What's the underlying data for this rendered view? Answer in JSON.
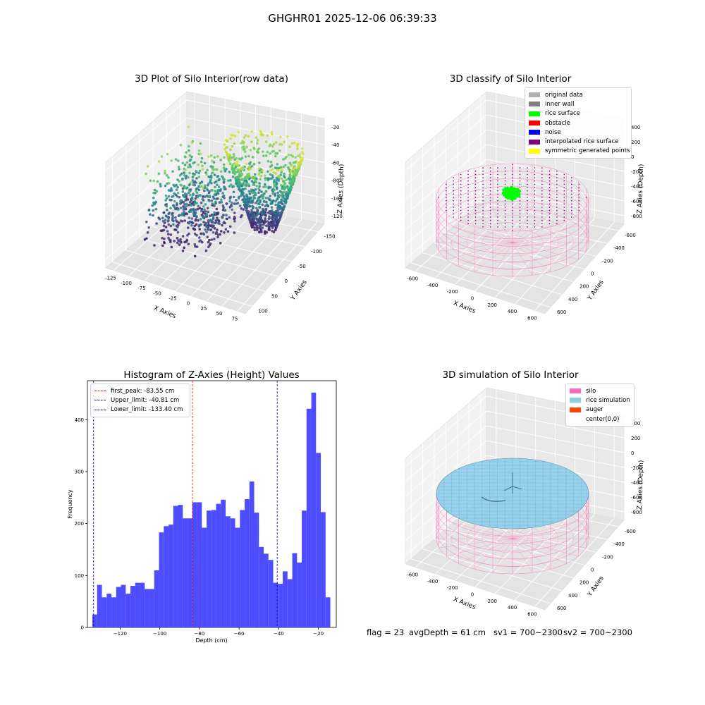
{
  "suptitle": "GHGHR01 2025-12-06 06:39:33",
  "chart_data": [
    {
      "type": "scatter",
      "subtype": "3d",
      "title": "3D Plot of Silo Interior(row data)",
      "xlabel": "X Axies",
      "ylabel": "Y Axies",
      "zlabel": "Z Axies (Depth)",
      "x_ticks": [
        "-125",
        "-100",
        "-75",
        "-50",
        "-25",
        "0",
        "25",
        "50",
        "75"
      ],
      "y_ticks": [
        "100",
        "50",
        "0",
        "-50",
        "-100",
        "-150"
      ],
      "z_ticks": [
        "-20",
        "-40",
        "-60",
        "-80",
        "-100",
        "-120"
      ],
      "xlim": [
        -135,
        78
      ],
      "ylim": [
        -160,
        110
      ],
      "zlim": [
        -135,
        -15
      ],
      "colormap": "viridis",
      "grid": true
    },
    {
      "type": "scatter",
      "subtype": "3d",
      "title": "3D classify of Silo Interior",
      "xlabel": "X Axies",
      "ylabel": "Y Axies",
      "zlabel": "Z Axies (Depth)",
      "x_ticks": [
        "-600",
        "-400",
        "-200",
        "0",
        "200",
        "400",
        "600"
      ],
      "y_ticks": [
        "600",
        "400",
        "200",
        "0",
        "-200",
        "-400",
        "-600"
      ],
      "z_ticks": [
        "400",
        "200",
        "0",
        "-200",
        "-400",
        "-600",
        "-800"
      ],
      "legend": [
        {
          "label": "original data",
          "color": "#b0b0b0"
        },
        {
          "label": "inner wall",
          "color": "#808080"
        },
        {
          "label": "rice surface",
          "color": "#00ff00"
        },
        {
          "label": "obstacle",
          "color": "#ff0000"
        },
        {
          "label": "noise",
          "color": "#0000ff"
        },
        {
          "label": "interpolated rice surface",
          "color": "#800080"
        },
        {
          "label": "symmetric generated points",
          "color": "#ffff00"
        }
      ],
      "legend_loc": "upper right",
      "grid": true
    },
    {
      "type": "bar",
      "subtype": "histogram",
      "title": "Histogram of Z-Axies (Height) Values",
      "xlabel": "Depth (cm)",
      "ylabel": "Frequency",
      "bin_start": -134.0,
      "bin_width": 2.4,
      "values": [
        25,
        82,
        58,
        65,
        58,
        78,
        82,
        65,
        80,
        86,
        86,
        74,
        74,
        110,
        183,
        195,
        198,
        234,
        236,
        210,
        210,
        241,
        241,
        192,
        225,
        226,
        238,
        246,
        214,
        210,
        192,
        226,
        247,
        281,
        221,
        155,
        142,
        130,
        86,
        84,
        108,
        93,
        143,
        125,
        225,
        421,
        452,
        336,
        222,
        58
      ],
      "xlim": [
        -136.5,
        -11
      ],
      "ylim": [
        0,
        475
      ],
      "x_ticks": [
        -120,
        -100,
        -80,
        -60,
        -40,
        -20
      ],
      "y_ticks": [
        0,
        100,
        200,
        300,
        400
      ],
      "bar_color": "#4d4dff",
      "vlines": [
        {
          "label": "first_peak: -83.55 cm",
          "x": -83.55,
          "color": "#ff0000"
        },
        {
          "label": "Upper_limit: -40.81 cm",
          "x": -40.81,
          "color": "#0000cc"
        },
        {
          "label": "Lower_limit: -133.40 cm",
          "x": -133.4,
          "color": "#0000cc"
        }
      ],
      "legend_loc": "upper left"
    },
    {
      "type": "surface",
      "subtype": "3d",
      "title": "3D simulation of Silo Interior",
      "xlabel": "X Axies",
      "ylabel": "Y Axies",
      "zlabel": "Z Axies (Depth)",
      "x_ticks": [
        "-600",
        "-400",
        "-200",
        "0",
        "200",
        "400",
        "600"
      ],
      "y_ticks": [
        "600",
        "400",
        "200",
        "0",
        "-200",
        "-400",
        "-600"
      ],
      "z_ticks": [
        "400",
        "200",
        "0",
        "-200",
        "-400",
        "-600",
        "-800"
      ],
      "legend": [
        {
          "label": "silo",
          "color": "#ff69b4"
        },
        {
          "label": "rice simulation",
          "color": "#87ceeb"
        },
        {
          "label": "auger",
          "color": "#ff4500"
        },
        {
          "label": "center(0,0)",
          "color": "#ffffff"
        }
      ],
      "legend_loc": "upper right",
      "grid": true
    }
  ],
  "status": {
    "flag": "flag = 23",
    "avg_depth": "avgDepth = 61 cm",
    "sv1": "sv1 = 700~2300",
    "sv2": "sv2 = 700~2300"
  }
}
